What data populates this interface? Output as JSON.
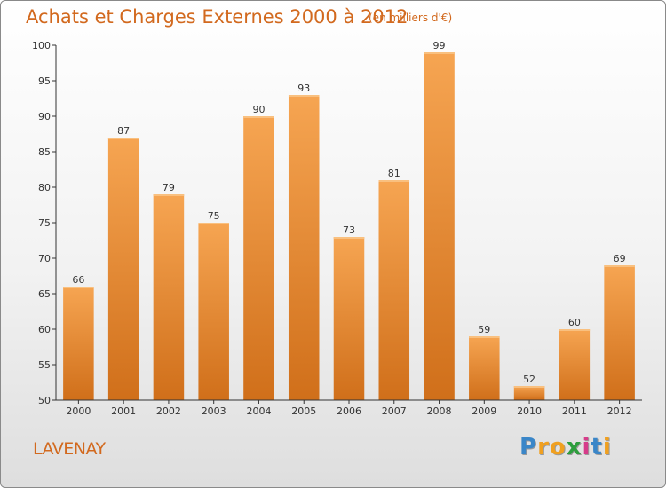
{
  "chart_data": {
    "type": "bar",
    "title": "Achats et Charges Externes 2000 à 2012",
    "subtitle": "(en milliers d'€)",
    "categories": [
      "2000",
      "2001",
      "2002",
      "2003",
      "2004",
      "2005",
      "2006",
      "2007",
      "2008",
      "2009",
      "2010",
      "2011",
      "2012"
    ],
    "values": [
      66,
      87,
      79,
      75,
      90,
      93,
      73,
      81,
      99,
      59,
      52,
      60,
      69
    ],
    "ylim": [
      50,
      100
    ],
    "yticks": [
      50,
      55,
      60,
      65,
      70,
      75,
      80,
      85,
      90,
      95,
      100
    ],
    "xlabel": "",
    "ylabel": "",
    "grid": false,
    "bar_color_light": "#f6a552",
    "bar_color_dark": "#d06f1a"
  },
  "commune": "LAVENAY",
  "logo": {
    "letters": [
      "P",
      "r",
      "o",
      "x",
      "i",
      "t",
      "i"
    ],
    "colors": [
      "#3a86c8",
      "#f0a020",
      "#f0a020",
      "#2e9e3e",
      "#d63c8a",
      "#3a86c8",
      "#f0a020"
    ]
  },
  "title_color": "#d2691e"
}
